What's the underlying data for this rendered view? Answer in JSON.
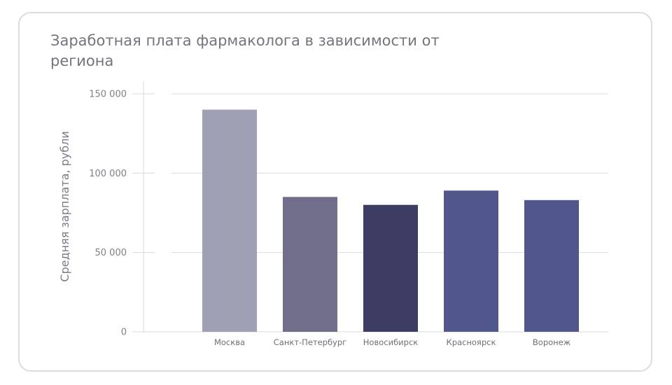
{
  "chart_data": {
    "type": "bar",
    "title": "Заработная плата фармаколога в зависимости от региона",
    "xlabel": "",
    "ylabel": "Средняя зарплата, рубли",
    "ylim": [
      0,
      150000
    ],
    "yticks": [
      0,
      50000,
      100000,
      150000
    ],
    "ytick_labels": [
      "0",
      "50 000",
      "100 000",
      "150 000"
    ],
    "categories": [
      "Москва",
      "Санкт-Петербург",
      "Новосибирск",
      "Красноярск",
      "Воронеж"
    ],
    "values": [
      140000,
      85000,
      80000,
      89000,
      83000
    ],
    "colors": [
      "#9fa0b3",
      "#706e8b",
      "#3d3d63",
      "#51578a",
      "#51578a"
    ],
    "grid": true,
    "legend": "none"
  }
}
